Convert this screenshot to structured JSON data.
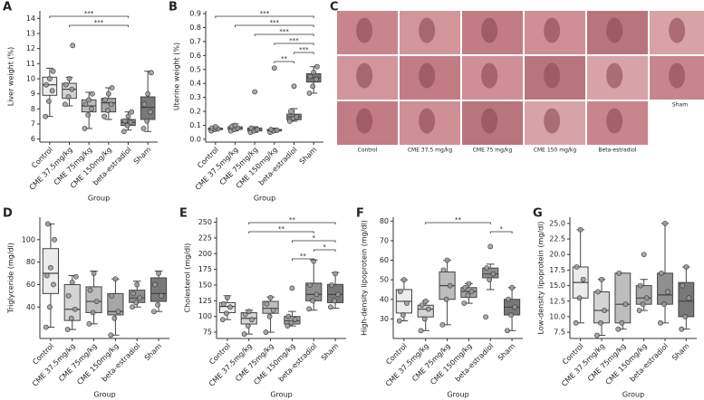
{
  "chart_data": [
    {
      "type": "box",
      "panel_label": "A",
      "ylabel": "Liver weight (%)",
      "xlabel": "Group",
      "categories": [
        "Control",
        "CME 37.5mg/kg",
        "CME 75mg/kg",
        "CME 150mg/kg",
        "beta-estradiol",
        "Sham"
      ],
      "colors": [
        "#ececec",
        "#d4d4d4",
        "#bdbdbd",
        "#a6a6a6",
        "#8f8f8f",
        "#787878"
      ],
      "boxes": [
        [
          7.5,
          8.9,
          9.6,
          10.1,
          10.7
        ],
        [
          8.2,
          8.7,
          9.3,
          9.7,
          10.1
        ],
        [
          6.7,
          7.8,
          8.2,
          8.6,
          9.1
        ],
        [
          7.3,
          7.8,
          8.4,
          8.7,
          9.4
        ],
        [
          6.6,
          6.9,
          7.1,
          7.3,
          7.8
        ],
        [
          6.5,
          7.3,
          8.1,
          8.8,
          10.5
        ]
      ],
      "points": [
        [
          7.5,
          8.5,
          9.2,
          9.6,
          10.0,
          10.5
        ],
        [
          8.3,
          8.8,
          9.3,
          9.6,
          10.0,
          12.2
        ],
        [
          6.7,
          7.6,
          8.0,
          8.3,
          8.6,
          9.0
        ],
        [
          7.5,
          7.9,
          8.3,
          8.6,
          9.0,
          9.4
        ],
        [
          6.5,
          6.9,
          7.1,
          7.2,
          7.5,
          7.8
        ],
        [
          6.7,
          7.2,
          7.8,
          8.3,
          9.0,
          10.4
        ]
      ],
      "ylim": [
        5.8,
        14.5
      ],
      "yticks": [
        6,
        7,
        8,
        9,
        10,
        11,
        12,
        13,
        14
      ],
      "annotations": [
        {
          "from": 1,
          "to": 4,
          "label": "***"
        },
        {
          "from": 0,
          "to": 4,
          "label": "***"
        }
      ]
    },
    {
      "type": "box",
      "panel_label": "B",
      "ylabel": "Uterine weight (%)",
      "xlabel": "Group",
      "categories": [
        "Control",
        "CME 37.5mg/kg",
        "CME 75mg/kg",
        "CME 150mg/kg",
        "beta-estradiol",
        "Sham"
      ],
      "colors": [
        "#ececec",
        "#d4d4d4",
        "#bdbdbd",
        "#a6a6a6",
        "#8f8f8f",
        "#787878"
      ],
      "boxes": [
        [
          0.06,
          0.07,
          0.075,
          0.08,
          0.09
        ],
        [
          0.06,
          0.07,
          0.08,
          0.09,
          0.11
        ],
        [
          0.05,
          0.06,
          0.07,
          0.08,
          0.09
        ],
        [
          0.05,
          0.06,
          0.065,
          0.07,
          0.08
        ],
        [
          0.13,
          0.14,
          0.16,
          0.18,
          0.22
        ],
        [
          0.33,
          0.41,
          0.44,
          0.47,
          0.52
        ]
      ],
      "points": [
        [
          0.06,
          0.07,
          0.075,
          0.08,
          0.09
        ],
        [
          0.06,
          0.07,
          0.08,
          0.09,
          0.1
        ],
        [
          0.05,
          0.06,
          0.07,
          0.08,
          0.34
        ],
        [
          0.05,
          0.06,
          0.065,
          0.07,
          0.51
        ],
        [
          0.13,
          0.15,
          0.16,
          0.2,
          0.38
        ],
        [
          0.33,
          0.38,
          0.43,
          0.45,
          0.48,
          0.52
        ]
      ],
      "ylim": [
        -0.02,
        0.92
      ],
      "yticks": [
        {
          "value": 0,
          "label": "0.0"
        },
        0.1,
        0.2,
        0.3,
        0.4,
        0.5,
        0.6,
        0.7,
        0.8,
        0.9
      ],
      "annotations": [
        {
          "from": 3,
          "to": 4,
          "label": "**"
        },
        {
          "from": 4,
          "to": 5,
          "label": "***"
        },
        {
          "from": 3,
          "to": 5,
          "label": "***"
        },
        {
          "from": 2,
          "to": 5,
          "label": "***"
        },
        {
          "from": 1,
          "to": 5,
          "label": "***"
        },
        {
          "from": 0,
          "to": 5,
          "label": "***"
        }
      ]
    },
    {
      "type": "box",
      "panel_label": "D",
      "ylabel": "Triglyceride (mg/dl)",
      "xlabel": "Group",
      "categories": [
        "Control",
        "CME 37.5mg/kg",
        "CME 75mg/kg",
        "CME 150mg/kg",
        "beta-estradiol",
        "Sham"
      ],
      "colors": [
        "#ececec",
        "#d4d4d4",
        "#bdbdbd",
        "#a6a6a6",
        "#8f8f8f",
        "#787878"
      ],
      "boxes": [
        [
          22,
          52,
          70,
          92,
          114
        ],
        [
          20,
          28,
          38,
          60,
          68
        ],
        [
          25,
          35,
          45,
          58,
          72
        ],
        [
          15,
          33,
          36,
          52,
          65
        ],
        [
          40,
          44,
          48,
          55,
          63
        ],
        [
          36,
          45,
          52,
          66,
          72
        ]
      ],
      "points": [
        [
          22,
          40,
          60,
          68,
          75,
          100,
          114
        ],
        [
          20,
          30,
          38,
          50,
          62,
          67
        ],
        [
          25,
          35,
          45,
          55,
          70
        ],
        [
          15,
          30,
          36,
          50,
          65
        ],
        [
          40,
          44,
          48,
          52,
          60
        ],
        [
          36,
          42,
          50,
          60,
          70
        ]
      ],
      "ylim": [
        12,
        120
      ],
      "yticks": [
        40,
        60,
        80,
        100
      ],
      "annotations": []
    },
    {
      "type": "box",
      "panel_label": "E",
      "ylabel": "Cholesterol (mg/dl)",
      "xlabel": "Group",
      "categories": [
        "Control",
        "CME 37.5mg/kg",
        "CME 75mg/kg",
        "CME 150mg/kg",
        "beta-estradiol",
        "Sham"
      ],
      "colors": [
        "#ececec",
        "#d4d4d4",
        "#bdbdbd",
        "#a6a6a6",
        "#8f8f8f",
        "#787878"
      ],
      "boxes": [
        [
          95,
          106,
          116,
          122,
          133
        ],
        [
          72,
          88,
          97,
          106,
          110
        ],
        [
          75,
          105,
          113,
          124,
          131
        ],
        [
          85,
          88,
          93,
          100,
          108
        ],
        [
          110,
          125,
          135,
          153,
          190
        ],
        [
          113,
          122,
          135,
          151,
          170
        ]
      ],
      "points": [
        [
          95,
          105,
          115,
          120,
          130
        ],
        [
          72,
          85,
          95,
          103,
          108
        ],
        [
          75,
          100,
          110,
          120,
          130
        ],
        [
          85,
          90,
          95,
          100,
          145
        ],
        [
          112,
          125,
          135,
          150,
          188
        ],
        [
          115,
          125,
          135,
          150,
          168
        ]
      ],
      "ylim": [
        65,
        258
      ],
      "yticks": [
        75,
        100,
        125,
        150,
        175,
        200,
        225,
        250
      ],
      "annotations": [
        {
          "from": 3,
          "to": 4,
          "label": "**"
        },
        {
          "from": 4,
          "to": 5,
          "label": "*"
        },
        {
          "from": 3,
          "to": 5,
          "label": "*"
        },
        {
          "from": 1,
          "to": 4,
          "label": "**"
        },
        {
          "from": 1,
          "to": 5,
          "label": "**"
        }
      ]
    },
    {
      "type": "box",
      "panel_label": "F",
      "ylabel": "High-density lipoprotein (mg/dl)",
      "xlabel": "Group",
      "categories": [
        "Control",
        "CME 37.5mg/kg",
        "CME 75mg/kg",
        "CME 150mg/kg",
        "beta-estradiol",
        "Sham"
      ],
      "colors": [
        "#ececec",
        "#d4d4d4",
        "#bdbdbd",
        "#a6a6a6",
        "#8f8f8f",
        "#787878"
      ],
      "boxes": [
        [
          29,
          33,
          39,
          45,
          50
        ],
        [
          24,
          31,
          35,
          37,
          39
        ],
        [
          27,
          40,
          47,
          54,
          60
        ],
        [
          38,
          41,
          44,
          46,
          48
        ],
        [
          45,
          51,
          53,
          56,
          58
        ],
        [
          24,
          32,
          36,
          40,
          46
        ]
      ],
      "points": [
        [
          29,
          32,
          38,
          44,
          50
        ],
        [
          24,
          30,
          35,
          37,
          39
        ],
        [
          27,
          40,
          47,
          55,
          60
        ],
        [
          38,
          42,
          44,
          46,
          48
        ],
        [
          31,
          50,
          53,
          56,
          67
        ],
        [
          24,
          32,
          36,
          40,
          46
        ]
      ],
      "ylim": [
        20,
        82
      ],
      "yticks": [
        30,
        40,
        50,
        60,
        70,
        80
      ],
      "annotations": [
        {
          "from": 4,
          "to": 5,
          "label": "*"
        },
        {
          "from": 1,
          "to": 4,
          "label": "**"
        }
      ]
    },
    {
      "type": "box",
      "panel_label": "G",
      "ylabel": "Low-density lipoprotein (mg/dl)",
      "xlabel": "Group",
      "categories": [
        "Control",
        "CME 37.5mg/kg",
        "CME 75mg/kg",
        "CME 150mg/kg",
        "beta-estradiol",
        "Sham"
      ],
      "colors": [
        "#ececec",
        "#d4d4d4",
        "#bdbdbd",
        "#a6a6a6",
        "#8f8f8f",
        "#787878"
      ],
      "boxes": [
        [
          9,
          13,
          15.5,
          18,
          24
        ],
        [
          7,
          9,
          11,
          14,
          16
        ],
        [
          8,
          9,
          12,
          17,
          17
        ],
        [
          11,
          12,
          13,
          15,
          16
        ],
        [
          9,
          12,
          13.5,
          17,
          25
        ],
        [
          8,
          10,
          12.5,
          15.5,
          18
        ]
      ],
      "points": [
        [
          9,
          13,
          16,
          18,
          24
        ],
        [
          7,
          9,
          11,
          14,
          16
        ],
        [
          8,
          9,
          12,
          17
        ],
        [
          11,
          12,
          13,
          15,
          20
        ],
        [
          9,
          12,
          14,
          17,
          25
        ],
        [
          8,
          10,
          13,
          15,
          18
        ]
      ],
      "ylim": [
        6.5,
        26
      ],
      "yticks": [
        7.5,
        {
          "value": 10,
          "label": "10.0"
        },
        12.5,
        {
          "value": 15,
          "label": "15.0"
        },
        17.5,
        {
          "value": 20,
          "label": "20.0"
        },
        22.5,
        {
          "value": 25,
          "label": "25.0"
        }
      ],
      "annotations": []
    }
  ],
  "images": {
    "panel_label": "C",
    "captions": [
      "Control",
      "CME 37.5 mg/kg",
      "CME 75 mg/kg",
      "CME 150 mg/kg",
      "Beta-estradiol",
      "Sham"
    ]
  }
}
